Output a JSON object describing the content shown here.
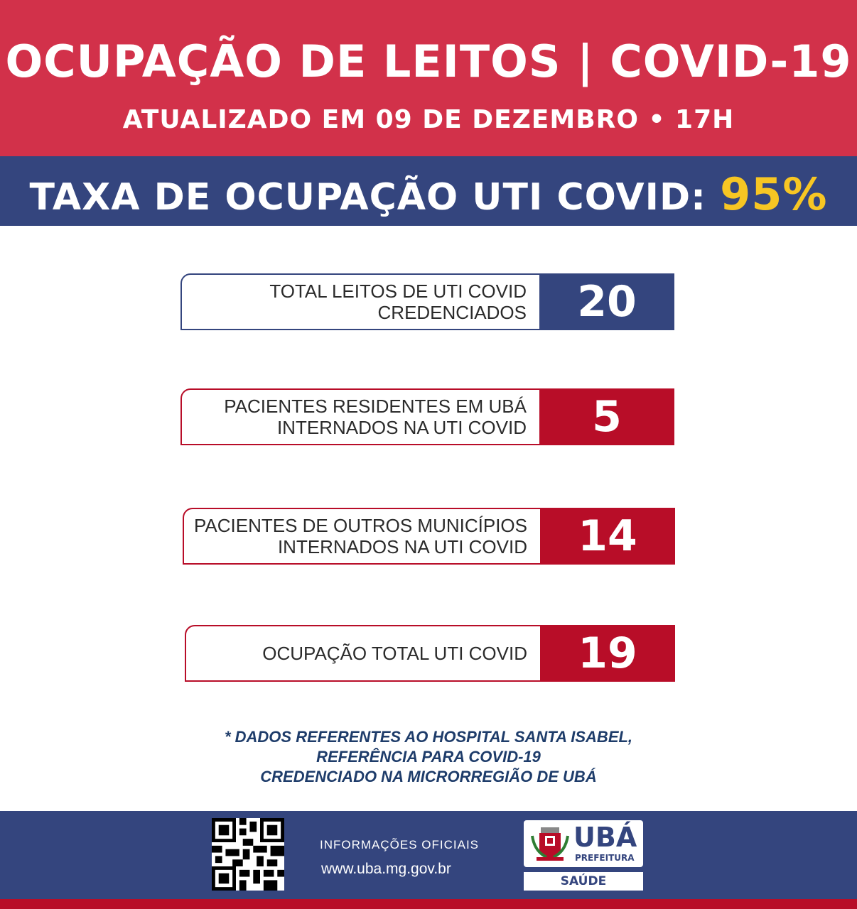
{
  "header": {
    "title": "OCUPAÇÃO DE LEITOS | COVID-19",
    "updated": "ATUALIZADO EM 09 DE DEZEMBRO • 17H"
  },
  "occupancy": {
    "label": "TAXA DE OCUPAÇÃO UTI COVID:",
    "value": "95%"
  },
  "cards": [
    {
      "line1": "TOTAL LEITOS DE UTI COVID",
      "line2": "CREDENCIADOS",
      "value": "20",
      "color": "#34457e"
    },
    {
      "line1": "PACIENTES RESIDENTES EM UBÁ",
      "line2": "INTERNADOS NA UTI COVID",
      "value": "5",
      "color": "#b80d28"
    },
    {
      "line1": "PACIENTES DE OUTROS MUNICÍPIOS",
      "line2": "INTERNADOS NA UTI COVID",
      "value": "14",
      "color": "#b80d28"
    },
    {
      "line1": "OCUPAÇÃO TOTAL UTI COVID",
      "line2": "",
      "value": "19",
      "color": "#b80d28"
    }
  ],
  "note": [
    "* DADOS REFERENTES AO HOSPITAL SANTA ISABEL,",
    "REFERÊNCIA PARA COVID-19",
    "CREDENCIADO NA MICRORREGIÃO DE UBÁ"
  ],
  "footer": {
    "info": "INFORMAÇÕES OFICIAIS",
    "url": "www.uba.mg.gov.br",
    "logo_name": "UBÁ",
    "logo_sub": "PREFEITURA",
    "department": "SAÚDE",
    "qr_icon": "qr-code"
  },
  "colors": {
    "header_red": "#d2314a",
    "navy": "#34457e",
    "accent_yellow": "#f7c623",
    "card_red": "#b80d28"
  }
}
